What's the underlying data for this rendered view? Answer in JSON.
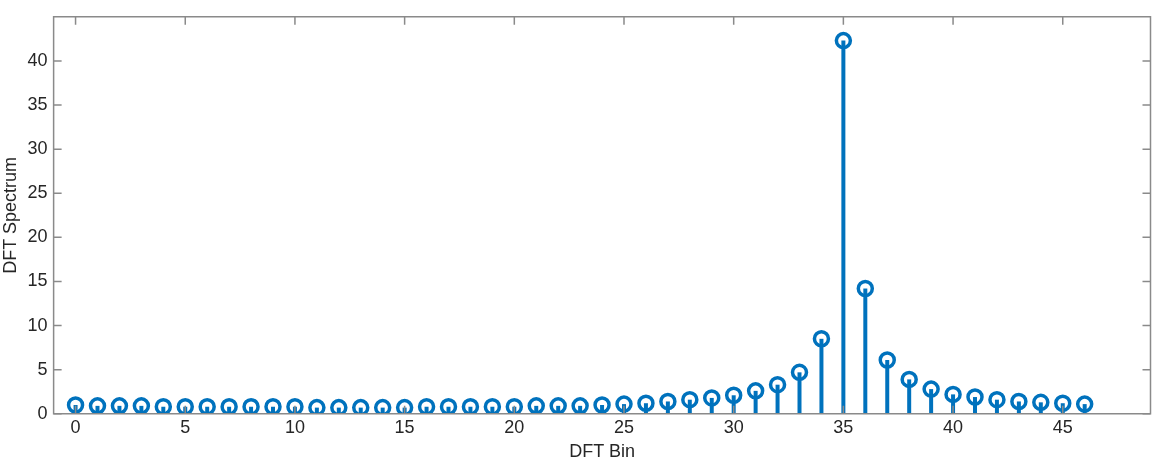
{
  "chart_data": {
    "type": "lollipop",
    "xlabel": "DFT Bin",
    "ylabel": "DFT Spectrum",
    "x": [
      0,
      1,
      2,
      3,
      4,
      5,
      6,
      7,
      8,
      9,
      10,
      11,
      12,
      13,
      14,
      15,
      16,
      17,
      18,
      19,
      20,
      21,
      22,
      23,
      24,
      25,
      26,
      27,
      28,
      29,
      30,
      31,
      32,
      33,
      34,
      35,
      36,
      37,
      38,
      39,
      40,
      41,
      42,
      43,
      44,
      45,
      46
    ],
    "series": [
      {
        "color": "#0072bd",
        "values": [
          1.0,
          0.9,
          0.9,
          0.9,
          0.8,
          0.8,
          0.8,
          0.8,
          0.8,
          0.8,
          0.8,
          0.7,
          0.7,
          0.7,
          0.7,
          0.7,
          0.8,
          0.8,
          0.8,
          0.8,
          0.8,
          0.9,
          0.9,
          0.9,
          1.0,
          1.1,
          1.2,
          1.4,
          1.6,
          1.8,
          2.1,
          2.6,
          3.3,
          4.7,
          8.5,
          42.3,
          14.2,
          6.1,
          3.9,
          2.8,
          2.2,
          1.9,
          1.6,
          1.4,
          1.3,
          1.2,
          1.1
        ]
      }
    ],
    "xlim": [
      -1,
      49
    ],
    "xticks": [
      0,
      5,
      10,
      15,
      20,
      25,
      30,
      35,
      40,
      45
    ],
    "ylim": [
      0,
      45
    ],
    "yticks": [
      0,
      5,
      10,
      15,
      20,
      25,
      30,
      35,
      40
    ],
    "marker": "circle",
    "grid": false,
    "legend": false
  }
}
